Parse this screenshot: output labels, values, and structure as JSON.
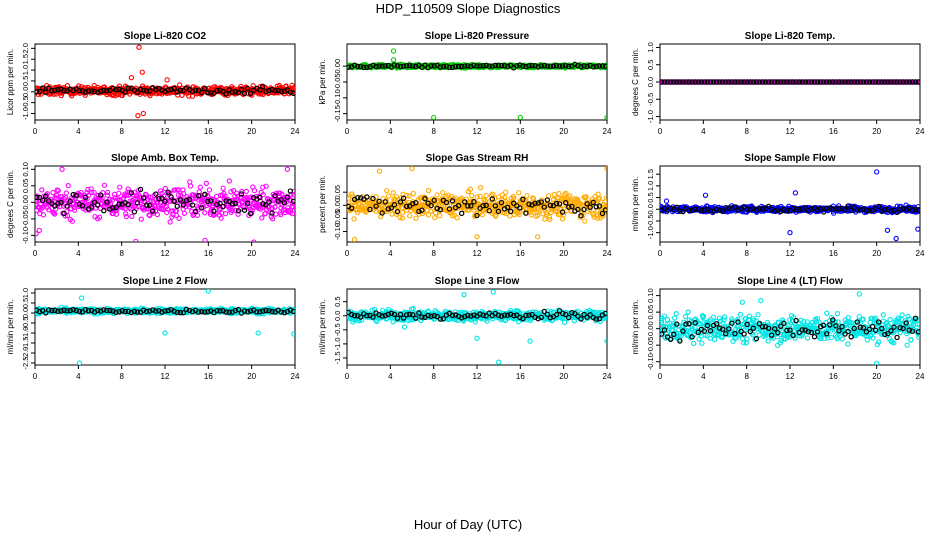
{
  "title": "HDP_110509  Slope Diagnostics",
  "xlabel": "Hour of Day (UTC)",
  "chart_data": [
    {
      "type": "scatter",
      "title": "Slope Li-820 CO2",
      "ylabel": "Licor ppm per min.",
      "color": "#ff0000",
      "xlim": [
        0,
        24
      ],
      "ylim": [
        -1.3,
        2.2
      ],
      "xticks": [
        0,
        4,
        8,
        12,
        16,
        20,
        24
      ],
      "yticks": [
        -1.0,
        -0.5,
        0.0,
        0.5,
        1.0,
        1.5,
        2.0
      ],
      "yticklabels": [
        "-1.0",
        "-0.5",
        "0.0",
        "0.5",
        "1.0",
        "1.5",
        "2.0"
      ],
      "center": 0.05,
      "spread": 0.2,
      "black_spread": 0.15,
      "outliers": [
        [
          9.6,
          2.05
        ],
        [
          9.5,
          -1.1
        ],
        [
          10.0,
          -1.0
        ],
        [
          9.9,
          0.9
        ],
        [
          8.9,
          0.65
        ],
        [
          12.2,
          0.55
        ]
      ]
    },
    {
      "type": "scatter",
      "title": "Slope Li-820 Pressure",
      "ylabel": "kPa per min.",
      "color": "#00cc00",
      "xlim": [
        0,
        24
      ],
      "ylim": [
        -0.17,
        0.07
      ],
      "xticks": [
        0,
        4,
        8,
        12,
        16,
        20,
        24
      ],
      "yticks": [
        -0.15,
        -0.1,
        -0.05,
        0.0
      ],
      "yticklabels": [
        "-0.15",
        "-0.10",
        "-0.05",
        "0.00"
      ],
      "center": 0.0,
      "spread": 0.005,
      "black_spread": 0.004,
      "outliers": [
        [
          4.3,
          0.048
        ],
        [
          8.0,
          -0.162
        ],
        [
          16.0,
          -0.162
        ],
        [
          24.0,
          -0.162
        ],
        [
          4.3,
          0.02
        ]
      ]
    },
    {
      "type": "scatter",
      "title": "Slope Li-820 Temp.",
      "ylabel": "degrees C per min.",
      "color": "#cc00cc",
      "xlim": [
        0,
        24
      ],
      "ylim": [
        -1.1,
        1.1
      ],
      "xticks": [
        0,
        4,
        8,
        12,
        16,
        20,
        24
      ],
      "yticks": [
        -1.0,
        -0.5,
        0.0,
        0.5,
        1.0
      ],
      "yticklabels": [
        "-1.0",
        "-0.5",
        "0.0",
        "0.5",
        "1.0"
      ],
      "center": 0.0,
      "spread": 0.0,
      "black_spread": 0.0,
      "outliers": []
    },
    {
      "type": "scatter",
      "title": "Slope Amb. Box Temp.",
      "ylabel": "degrees C per min.",
      "color": "#ff00ff",
      "xlim": [
        0,
        24
      ],
      "ylim": [
        -0.12,
        0.11
      ],
      "xticks": [
        0,
        4,
        8,
        12,
        16,
        20,
        24
      ],
      "yticks": [
        -0.1,
        -0.05,
        0.0,
        0.05,
        0.1
      ],
      "yticklabels": [
        "-0.10",
        "-0.05",
        "0.00",
        "0.05",
        "0.10"
      ],
      "center": 0.0,
      "spread": 0.045,
      "black_spread": 0.035,
      "outliers": [
        [
          0.1,
          -0.095
        ],
        [
          0.4,
          -0.085
        ],
        [
          9.3,
          -0.118
        ],
        [
          15.7,
          -0.115
        ],
        [
          20.2,
          -0.12
        ],
        [
          2.5,
          0.1
        ],
        [
          23.3,
          0.1
        ]
      ]
    },
    {
      "type": "scatter",
      "title": "Slope Gas Stream RH",
      "ylabel": "percent per min.",
      "color": "#ffaa00",
      "xlim": [
        0,
        24
      ],
      "ylim": [
        -0.14,
        0.15
      ],
      "xticks": [
        0,
        4,
        8,
        12,
        16,
        20,
        24
      ],
      "yticks": [
        -0.1,
        -0.05,
        0.0,
        0.05
      ],
      "yticklabels": [
        "-0.10",
        "-0.05",
        "0.00",
        "0.05"
      ],
      "center": 0.0,
      "spread": 0.045,
      "black_spread": 0.04,
      "outliers": [
        [
          3.0,
          0.13
        ],
        [
          6.0,
          0.14
        ],
        [
          24.0,
          0.14
        ],
        [
          0.7,
          -0.13
        ],
        [
          12.0,
          -0.12
        ],
        [
          17.6,
          -0.12
        ]
      ]
    },
    {
      "type": "scatter",
      "title": "Slope Sample Flow",
      "ylabel": "ml/min per min.",
      "color": "#0000ff",
      "xlim": [
        0,
        24
      ],
      "ylim": [
        -1.4,
        1.85
      ],
      "xticks": [
        0,
        4,
        8,
        12,
        16,
        20,
        24
      ],
      "yticks": [
        -1.0,
        -0.5,
        0.0,
        0.5,
        1.0,
        1.5
      ],
      "yticklabels": [
        "-1.0",
        "-0.5",
        "0.0",
        "0.5",
        "1.0",
        "1.5"
      ],
      "center": 0.0,
      "spread": 0.12,
      "black_spread": 0.12,
      "outliers": [
        [
          20.0,
          1.6
        ],
        [
          12.5,
          0.7
        ],
        [
          4.2,
          0.6
        ],
        [
          21.8,
          -1.25
        ],
        [
          12.0,
          -1.0
        ],
        [
          21.0,
          -0.9
        ],
        [
          23.8,
          -0.85
        ],
        [
          0.6,
          0.35
        ]
      ]
    },
    {
      "type": "scatter",
      "title": "Slope Line 2 Flow",
      "ylabel": "ml/min per min.",
      "color": "#00e5e5",
      "xlim": [
        0,
        24
      ],
      "ylim": [
        -2.6,
        1.2
      ],
      "xticks": [
        0,
        4,
        8,
        12,
        16,
        20,
        24
      ],
      "yticks": [
        -2.5,
        -2.0,
        -1.5,
        -1.0,
        -0.5,
        0.0,
        0.5,
        1.0
      ],
      "yticklabels": [
        "-2.5",
        "-2.0",
        "-1.5",
        "-1.0",
        "-0.5",
        "0.0",
        "0.5",
        "1.0"
      ],
      "center": 0.1,
      "spread": 0.12,
      "black_spread": 0.1,
      "outliers": [
        [
          4.1,
          -2.5
        ],
        [
          12.0,
          -1.0
        ],
        [
          20.6,
          -1.0
        ],
        [
          23.9,
          -1.05
        ],
        [
          16.0,
          1.1
        ],
        [
          4.3,
          0.75
        ]
      ]
    },
    {
      "type": "scatter",
      "title": "Slope Line 3 Flow",
      "ylabel": "ml/min per min.",
      "color": "#00e5e5",
      "xlim": [
        0,
        24
      ],
      "ylim": [
        -1.75,
        0.95
      ],
      "xticks": [
        0,
        4,
        8,
        12,
        16,
        20,
        24
      ],
      "yticks": [
        -1.5,
        -1.0,
        -0.5,
        0.0,
        0.5
      ],
      "yticklabels": [
        "-1.5",
        "-1.0",
        "-0.5",
        "0.0",
        "0.5"
      ],
      "center": 0.0,
      "spread": 0.18,
      "black_spread": 0.13,
      "outliers": [
        [
          14.0,
          -1.65
        ],
        [
          16.9,
          -0.9
        ],
        [
          12.0,
          -0.8
        ],
        [
          24.0,
          -0.9
        ],
        [
          5.3,
          -0.4
        ],
        [
          13.5,
          0.85
        ],
        [
          10.8,
          0.75
        ]
      ]
    },
    {
      "type": "scatter",
      "title": "Slope Line 4 (LT) Flow",
      "ylabel": "ml/min per min.",
      "color": "#00e5e5",
      "xlim": [
        0,
        24
      ],
      "ylim": [
        -0.11,
        0.12
      ],
      "xticks": [
        0,
        4,
        8,
        12,
        16,
        20,
        24
      ],
      "yticks": [
        -0.1,
        -0.05,
        0.0,
        0.05,
        0.1
      ],
      "yticklabels": [
        "-0.10",
        "-0.05",
        "0.00",
        "0.05",
        "0.10"
      ],
      "center": 0.0,
      "spread": 0.04,
      "black_spread": 0.03,
      "outliers": [
        [
          20.0,
          -0.105
        ],
        [
          18.4,
          0.105
        ],
        [
          7.6,
          0.08
        ],
        [
          9.3,
          0.085
        ],
        [
          2.6,
          0.05
        ]
      ]
    }
  ]
}
